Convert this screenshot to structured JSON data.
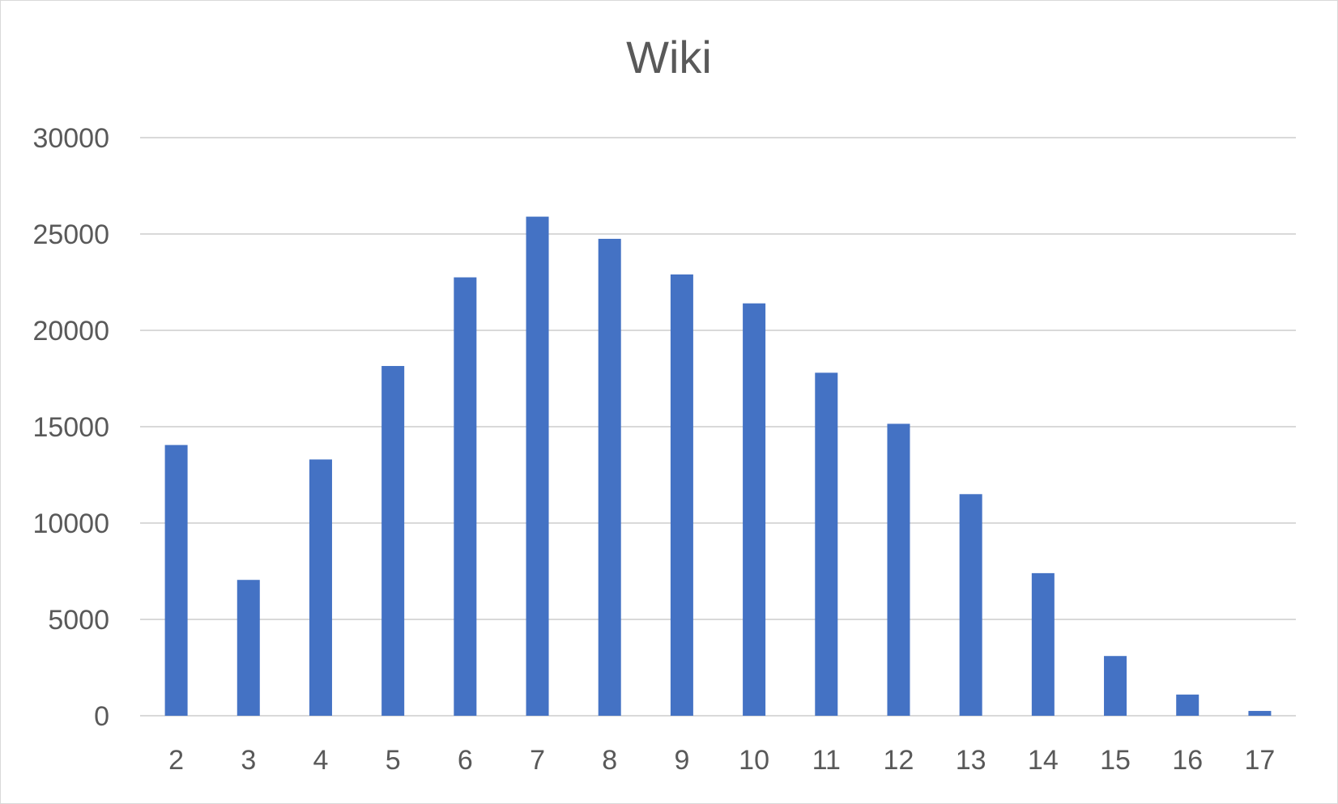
{
  "chart_data": {
    "type": "bar",
    "title": "Wiki",
    "xlabel": "",
    "ylabel": "",
    "categories": [
      "2",
      "3",
      "4",
      "5",
      "6",
      "7",
      "8",
      "9",
      "10",
      "11",
      "12",
      "13",
      "14",
      "15",
      "16",
      "17"
    ],
    "values": [
      14050,
      7050,
      13300,
      18150,
      22750,
      25900,
      24750,
      22900,
      21400,
      17800,
      15150,
      11500,
      7400,
      3100,
      1100,
      250
    ],
    "ylim": [
      0,
      30000
    ],
    "yticks": [
      "0",
      "5000",
      "10000",
      "15000",
      "20000",
      "25000",
      "30000"
    ],
    "grid": true,
    "legend": "none",
    "bar_color": "#4472c4",
    "grid_color": "#d9d9d9",
    "axis_color": "#d9d9d9"
  }
}
